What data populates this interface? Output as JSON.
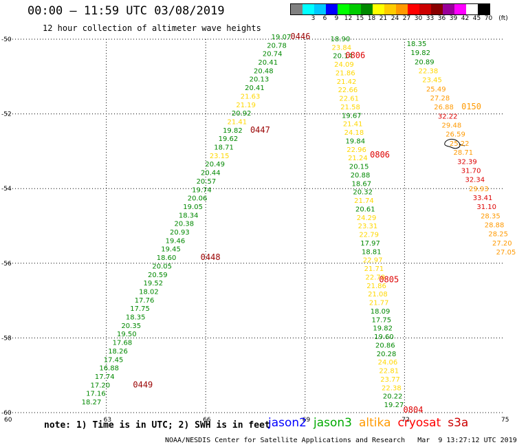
{
  "header": {
    "title": "00:00 – 11:59 UTC 03/08/2019",
    "subtitle": "12 hour collection of altimeter wave heights"
  },
  "colorbar": {
    "unit_label": "(ft)",
    "swatches": [
      {
        "label": "",
        "color": "#808080"
      },
      {
        "label": "3",
        "color": "#00ffff"
      },
      {
        "label": "6",
        "color": "#00c8ff"
      },
      {
        "label": "9",
        "color": "#0000ff"
      },
      {
        "label": "12",
        "color": "#00ff00"
      },
      {
        "label": "15",
        "color": "#00cc00"
      },
      {
        "label": "18",
        "color": "#008800"
      },
      {
        "label": "21",
        "color": "#ffff00"
      },
      {
        "label": "24",
        "color": "#ffcc00"
      },
      {
        "label": "27",
        "color": "#ff9900"
      },
      {
        "label": "30",
        "color": "#ff0000"
      },
      {
        "label": "33",
        "color": "#cc0000"
      },
      {
        "label": "36",
        "color": "#880000"
      },
      {
        "label": "39",
        "color": "#990099"
      },
      {
        "label": "42",
        "color": "#ff00ff"
      },
      {
        "label": "45",
        "color": "#ffffff"
      },
      {
        "label": "70",
        "color": "#000000"
      }
    ]
  },
  "axes": {
    "lat_labels": [
      "-50",
      "-52",
      "-54",
      "-56",
      "-58",
      "-60"
    ],
    "lon_labels": [
      "60",
      "63",
      "66",
      "69",
      "72",
      "75"
    ],
    "lat_range": [
      -60,
      -50
    ],
    "lon_range": [
      60,
      75
    ]
  },
  "level_colors": {
    "green": "#008800",
    "yellow": "#ffd700",
    "orange": "#ff9900",
    "red": "#dd0000",
    "darkred": "#990000"
  },
  "tracks": [
    {
      "points": [
        [
          "19.07",
          "green"
        ],
        [
          "20.78",
          "green"
        ],
        [
          "20.74",
          "green"
        ],
        [
          "20.41",
          "green"
        ],
        [
          "20.48",
          "green"
        ],
        [
          "20.13",
          "green"
        ],
        [
          "20.41",
          "green"
        ],
        [
          "21.63",
          "yellow"
        ],
        [
          "21.19",
          "yellow"
        ],
        [
          "20.92",
          "green"
        ],
        [
          "21.41",
          "yellow"
        ],
        [
          "19.82",
          "green"
        ],
        [
          "19.62",
          "green"
        ],
        [
          "18.71",
          "green"
        ],
        [
          "23.15",
          "yellow"
        ],
        [
          "20.49",
          "green"
        ],
        [
          "20.44",
          "green"
        ],
        [
          "20.57",
          "green"
        ],
        [
          "19.74",
          "green"
        ],
        [
          "20.06",
          "green"
        ],
        [
          "19.05",
          "green"
        ],
        [
          "18.34",
          "green"
        ],
        [
          "20.38",
          "green"
        ],
        [
          "20.93",
          "green"
        ],
        [
          "19.46",
          "green"
        ],
        [
          "19.45",
          "green"
        ],
        [
          "18.60",
          "green"
        ],
        [
          "20.05",
          "green"
        ],
        [
          "20.59",
          "green"
        ],
        [
          "19.52",
          "green"
        ],
        [
          "18.02",
          "green"
        ],
        [
          "17.76",
          "green"
        ],
        [
          "17.75",
          "green"
        ],
        [
          "18.35",
          "green"
        ],
        [
          "20.35",
          "green"
        ],
        [
          "19.50",
          "green"
        ],
        [
          "17.68",
          "green"
        ],
        [
          "18.26",
          "green"
        ],
        [
          "17.45",
          "green"
        ],
        [
          "16.88",
          "green"
        ],
        [
          "17.74",
          "green"
        ],
        [
          "17.20",
          "green"
        ],
        [
          "17.16",
          "green"
        ],
        [
          "18.27",
          "green"
        ]
      ],
      "times": [
        {
          "label": "0446",
          "color": "darkred",
          "at": 0
        },
        {
          "label": "0447",
          "color": "darkred",
          "at": 11
        },
        {
          "label": "0448",
          "color": "darkred",
          "at": 26
        },
        {
          "label": "0449",
          "color": "darkred",
          "at": 41
        }
      ]
    },
    {
      "points": [
        [
          "18.90",
          "green"
        ],
        [
          "23.84",
          "yellow"
        ],
        [
          "20.14",
          "green"
        ],
        [
          "24.09",
          "yellow"
        ],
        [
          "21.86",
          "yellow"
        ],
        [
          "21.42",
          "yellow"
        ],
        [
          "22.66",
          "yellow"
        ],
        [
          "22.61",
          "yellow"
        ],
        [
          "21.58",
          "yellow"
        ],
        [
          "19.67",
          "green"
        ],
        [
          "21.41",
          "yellow"
        ],
        [
          "24.18",
          "yellow"
        ],
        [
          "19.84",
          "green"
        ],
        [
          "22.96",
          "yellow"
        ],
        [
          "21.24",
          "yellow"
        ],
        [
          "20.15",
          "green"
        ],
        [
          "20.88",
          "green"
        ],
        [
          "18.67",
          "green"
        ],
        [
          "20.32",
          "green"
        ],
        [
          "21.74",
          "yellow"
        ],
        [
          "20.61",
          "green"
        ],
        [
          "24.29",
          "yellow"
        ],
        [
          "23.31",
          "yellow"
        ],
        [
          "22.79",
          "yellow"
        ],
        [
          "17.97",
          "green"
        ],
        [
          "18.81",
          "green"
        ],
        [
          "22.97",
          "yellow"
        ],
        [
          "21.71",
          "yellow"
        ],
        [
          "22.78",
          "yellow"
        ],
        [
          "21.86",
          "yellow"
        ],
        [
          "21.08",
          "yellow"
        ],
        [
          "21.77",
          "yellow"
        ],
        [
          "18.09",
          "green"
        ],
        [
          "17.75",
          "green"
        ],
        [
          "19.82",
          "green"
        ],
        [
          "19.60",
          "green"
        ],
        [
          "20.86",
          "green"
        ],
        [
          "20.28",
          "green"
        ],
        [
          "24.06",
          "yellow"
        ],
        [
          "22.81",
          "yellow"
        ],
        [
          "23.77",
          "yellow"
        ],
        [
          "22.38",
          "yellow"
        ],
        [
          "20.22",
          "green"
        ],
        [
          "19.27",
          "green"
        ]
      ],
      "times": [
        {
          "label": "0806",
          "color": "red",
          "at": 1
        },
        {
          "label": "0806",
          "color": "red",
          "at": 13
        },
        {
          "label": "0805",
          "color": "red",
          "at": 28
        },
        {
          "label": "0804",
          "color": "red",
          "at": 43
        }
      ]
    },
    {
      "points": [
        [
          "18.35",
          "green"
        ],
        [
          "19.82",
          "green"
        ],
        [
          "20.89",
          "green"
        ],
        [
          "22.38",
          "yellow"
        ],
        [
          "23.45",
          "yellow"
        ],
        [
          "25.49",
          "orange"
        ],
        [
          "27.28",
          "orange"
        ],
        [
          "26.88",
          "orange"
        ],
        [
          "32.22",
          "red"
        ],
        [
          "29.48",
          "orange"
        ],
        [
          "26.59",
          "orange"
        ],
        [
          "25.22",
          "orange"
        ],
        [
          "28.71",
          "orange"
        ],
        [
          "32.39",
          "red"
        ],
        [
          "31.70",
          "red"
        ],
        [
          "32.34",
          "red"
        ],
        [
          "29.93",
          "orange"
        ],
        [
          "33.41",
          "red"
        ],
        [
          "31.10",
          "red"
        ],
        [
          "28.35",
          "orange"
        ],
        [
          "28.88",
          "orange"
        ],
        [
          "28.25",
          "orange"
        ],
        [
          "27.20",
          "orange"
        ],
        [
          "27.05",
          "orange"
        ]
      ],
      "times": [
        {
          "label": "0150",
          "color": "orange",
          "at": 7
        }
      ]
    }
  ],
  "footer": {
    "note": "note: 1) Time is in UTC; 2) SWH is in feet",
    "legend": [
      {
        "label": "jason2",
        "color": "#0000ff"
      },
      {
        "label": "jason3",
        "color": "#00aa00"
      },
      {
        "label": "altika",
        "color": "#ff9900"
      },
      {
        "label": "cryosat",
        "color": "#ff0000"
      },
      {
        "label": "s3a",
        "color": "#cc0000"
      }
    ],
    "credit": "NOAA/NESDIS Center for Satellite Applications and Research   Mar  9 13:27:12 UTC 2019"
  }
}
